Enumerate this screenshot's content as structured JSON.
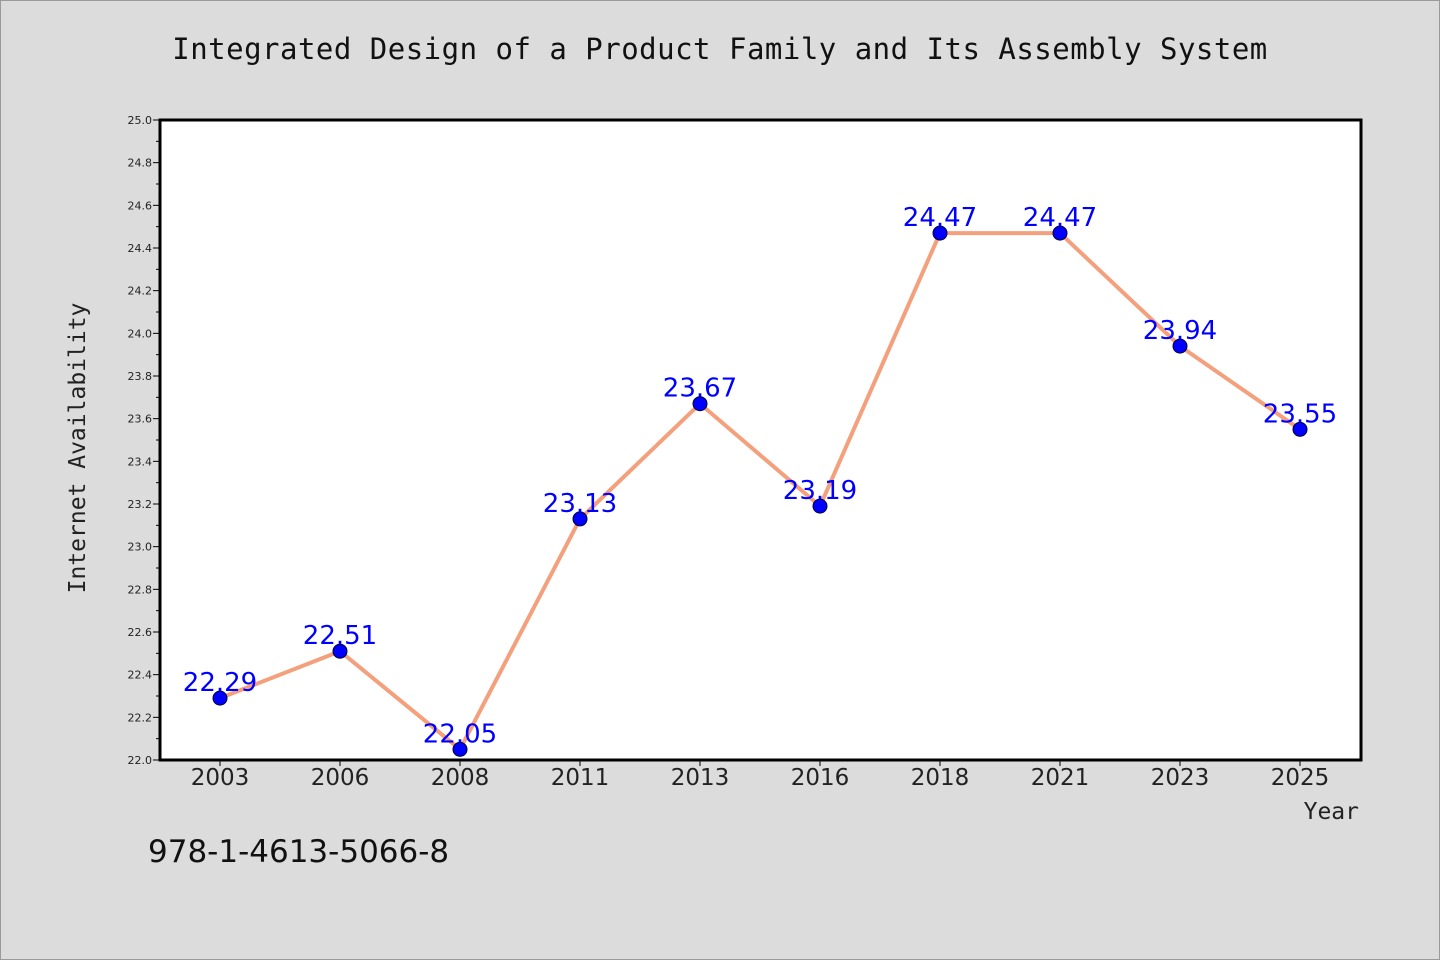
{
  "chart_data": {
    "type": "line",
    "title": "Integrated Design of a Product Family and Its Assembly System",
    "xlabel": "Year",
    "ylabel": "Internet Availability",
    "categories": [
      "2003",
      "2006",
      "2008",
      "2011",
      "2013",
      "2016",
      "2018",
      "2021",
      "2023",
      "2025"
    ],
    "series": [
      {
        "values": [
          22.29,
          22.51,
          22.05,
          23.13,
          23.67,
          23.19,
          24.47,
          24.47,
          23.94,
          23.55
        ],
        "line_color": "#f4a07c",
        "marker_color": "#0000ff"
      }
    ],
    "data_labels": [
      "22.29",
      "22.51",
      "22.05",
      "23.13",
      "23.67",
      "23.19",
      "24.47",
      "24.47",
      "23.94",
      "23.55"
    ],
    "ylim": [
      22.0,
      25.0
    ],
    "yticks": [
      "22.0",
      "22.2",
      "22.4",
      "22.6",
      "22.8",
      "23.0",
      "23.2",
      "23.4",
      "23.6",
      "23.8",
      "24.0",
      "24.2",
      "24.4",
      "24.6",
      "24.8",
      "25.0"
    ],
    "grid": false,
    "legend": "none",
    "label_color": "#0000ff"
  },
  "footer": {
    "isbn": "978-1-4613-5066-8"
  }
}
